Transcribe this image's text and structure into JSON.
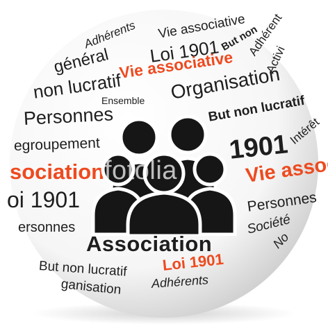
{
  "words": {
    "adherents_top": "Adhérents",
    "vie_associative_top": "Vie associative",
    "general": "général",
    "loi_1901_top": "Loi 1901",
    "but_non_top": "But non",
    "adherents_right_top": "Adhérent",
    "vie_associative_orange": "Vie associative",
    "activi": "Activi",
    "non_lucratif": "non lucratif",
    "ensemble": "Ensemble",
    "organisation": "Organisation",
    "personnes_left": "Personnes",
    "but_non_lucratif": "But non lucratif",
    "regroupement": "egroupement",
    "n1901": "1901",
    "interet": "Intérêt",
    "association_left": "sociation",
    "vie_asso_right": "Vie assoc",
    "loi_1901_left": "oi 1901",
    "personnes_right": "Personnes",
    "ersonnes": "ersonnes",
    "societe": "Société",
    "association_center": "Association",
    "no": "No",
    "but_non_lucratif_bottom": "But non lucratif",
    "loi_1901_bottom": "Loi 1901",
    "organisation_bottom": "ganisation",
    "adherents_bottom": "Adhérents"
  },
  "watermark": "fotolia",
  "icon": "group-of-people-icon",
  "colors": {
    "accent": "#ee4a1f",
    "text": "#1e1e1e",
    "sphere": "#ffffff"
  }
}
